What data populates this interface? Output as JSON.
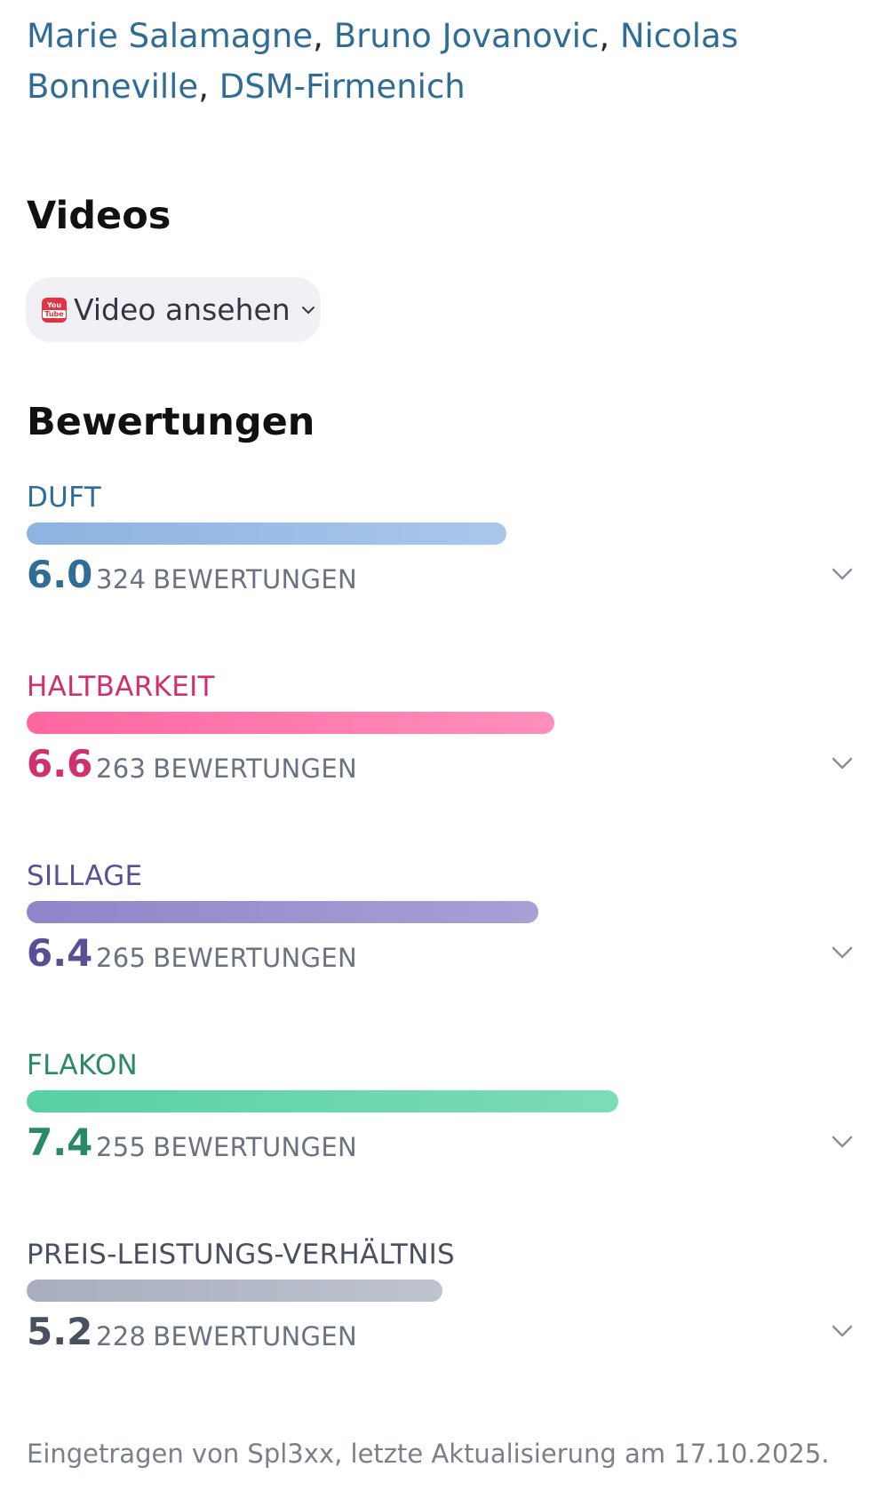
{
  "perfumers": {
    "names": [
      "Marie Salamagne",
      "Bruno Jovanovic",
      "Nicolas Bonneville",
      "DSM-Firmenich"
    ],
    "separator": ", "
  },
  "videos": {
    "title": "Videos",
    "button_label": "Video ansehen",
    "icon_top": "You",
    "icon_bottom": "Tube"
  },
  "ratings": {
    "title": "Bewertungen",
    "count_suffix": "BEWERTUNGEN",
    "scale_max": 10,
    "items": [
      {
        "key": "duft",
        "label": "DUFT",
        "score": "6.0",
        "value": 6.0,
        "count": "324",
        "color": "#2f6d97",
        "bar_from": "#8db3e0",
        "bar_to": "#a9c7eb"
      },
      {
        "key": "haltbarkeit",
        "label": "HALTBARKEIT",
        "score": "6.6",
        "value": 6.6,
        "count": "263",
        "color": "#d0306f",
        "bar_from": "#ff66a0",
        "bar_to": "#ff8fbc"
      },
      {
        "key": "sillage",
        "label": "SILLAGE",
        "score": "6.4",
        "value": 6.4,
        "count": "265",
        "color": "#5a4e96",
        "bar_from": "#9085c9",
        "bar_to": "#aaa0d6"
      },
      {
        "key": "flakon",
        "label": "FLAKON",
        "score": "7.4",
        "value": 7.4,
        "count": "255",
        "color": "#2b8a66",
        "bar_from": "#58d1a2",
        "bar_to": "#7ddcb6"
      },
      {
        "key": "preis-leistung",
        "label": "PREIS-LEISTUNGS-VERHÄLTNIS",
        "score": "5.2",
        "value": 5.2,
        "count": "228",
        "color": "#4a5060",
        "bar_from": "#a9aebe",
        "bar_to": "#bfc3cf"
      }
    ]
  },
  "footer": {
    "text": "Eingetragen von Spl3xx, letzte Aktualisierung am 17.10.2025."
  }
}
